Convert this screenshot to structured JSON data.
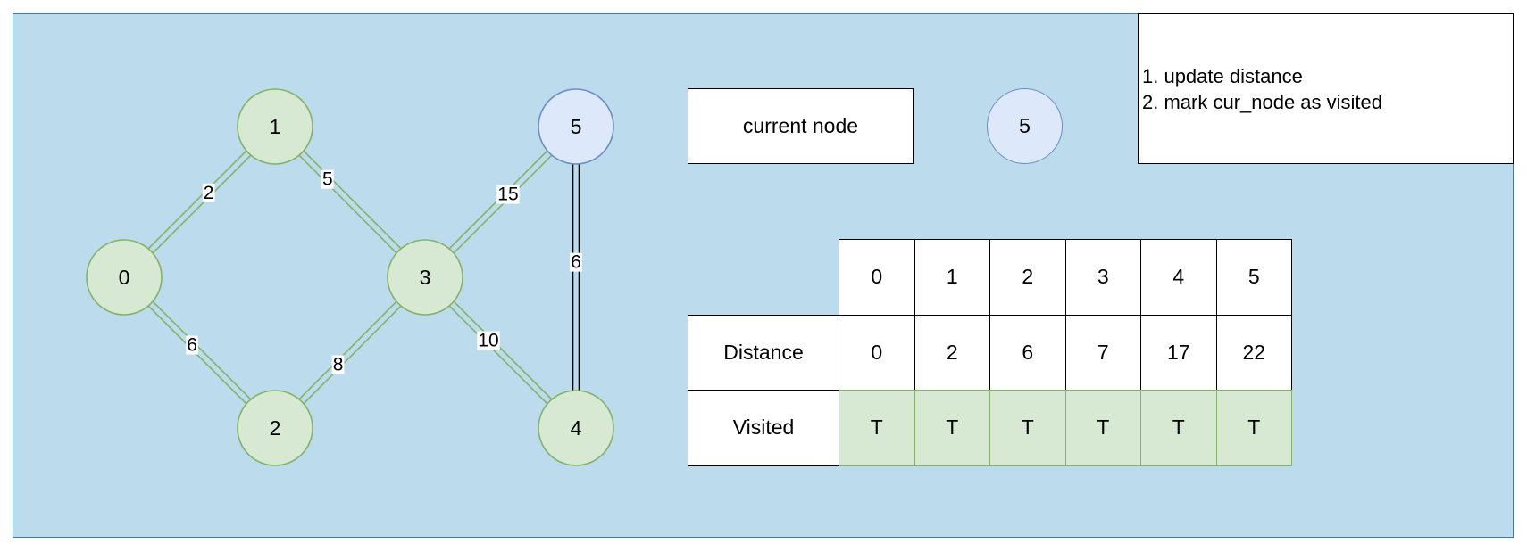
{
  "graph": {
    "nodes": [
      {
        "id": "0",
        "label": "0",
        "state": "visited"
      },
      {
        "id": "1",
        "label": "1",
        "state": "visited"
      },
      {
        "id": "2",
        "label": "2",
        "state": "visited"
      },
      {
        "id": "3",
        "label": "3",
        "state": "visited"
      },
      {
        "id": "4",
        "label": "4",
        "state": "visited"
      },
      {
        "id": "5",
        "label": "5",
        "state": "current"
      }
    ],
    "edges": [
      {
        "from": "0",
        "to": "1",
        "weight": "2"
      },
      {
        "from": "0",
        "to": "2",
        "weight": "6"
      },
      {
        "from": "1",
        "to": "3",
        "weight": "5"
      },
      {
        "from": "2",
        "to": "3",
        "weight": "8"
      },
      {
        "from": "3",
        "to": "5",
        "weight": "15"
      },
      {
        "from": "3",
        "to": "4",
        "weight": "10"
      },
      {
        "from": "5",
        "to": "4",
        "weight": "6"
      }
    ]
  },
  "current_node": {
    "label": "current node",
    "value": "5"
  },
  "steps": [
    "1. update distance",
    "2. mark cur_node as visited"
  ],
  "table": {
    "columns": [
      "0",
      "1",
      "2",
      "3",
      "4",
      "5"
    ],
    "rows": [
      {
        "label": "Distance",
        "values": [
          "0",
          "2",
          "6",
          "7",
          "17",
          "22"
        ]
      },
      {
        "label": "Visited",
        "values": [
          "T",
          "T",
          "T",
          "T",
          "T",
          "T"
        ]
      }
    ]
  },
  "colors": {
    "panel_bg": "#bcdced",
    "visited_fill": "#d7e8d3",
    "visited_stroke": "#82b366",
    "current_fill": "#dde8fb",
    "current_stroke": "#6b8dc6",
    "edge_green": "#82b366",
    "edge_dark": "#000000"
  }
}
